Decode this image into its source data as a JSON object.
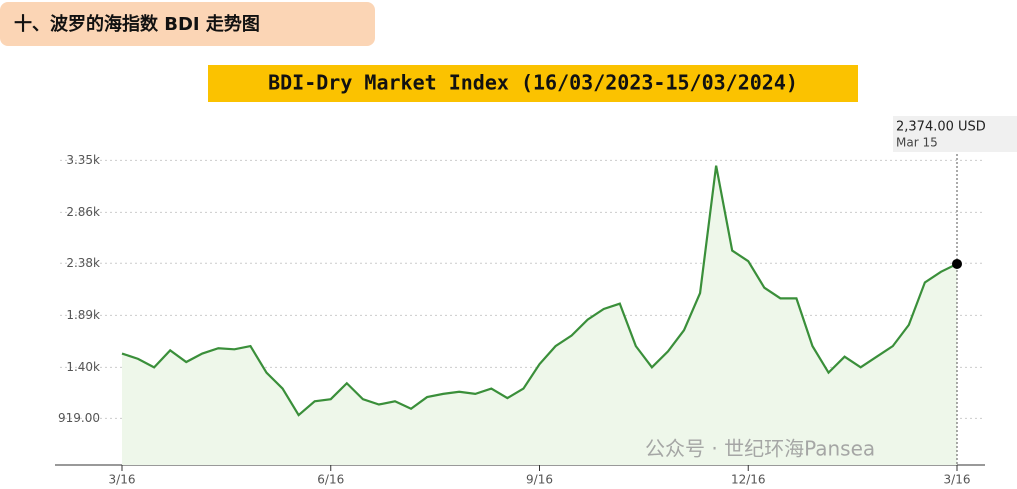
{
  "header": {
    "title": "十、波罗的海指数 BDI 走势图"
  },
  "chart_data": {
    "type": "line",
    "title": "BDI-Dry Market Index (16/03/2023-15/03/2024)",
    "categories": [
      "3/16",
      null,
      null,
      null,
      null,
      null,
      null,
      null,
      null,
      null,
      null,
      null,
      null,
      "6/16",
      null,
      null,
      null,
      null,
      null,
      null,
      null,
      null,
      null,
      null,
      null,
      null,
      "9/16",
      null,
      null,
      null,
      null,
      null,
      null,
      null,
      null,
      null,
      null,
      null,
      null,
      "12/16",
      null,
      null,
      null,
      null,
      null,
      null,
      null,
      null,
      null,
      null,
      null,
      null,
      "3/16"
    ],
    "series": [
      {
        "name": "BDI",
        "color": "#3a8f3a",
        "values": [
          1530,
          1480,
          1400,
          1560,
          1450,
          1530,
          1580,
          1570,
          1600,
          1350,
          1200,
          950,
          1080,
          1100,
          1250,
          1100,
          1050,
          1080,
          1010,
          1120,
          1150,
          1170,
          1150,
          1200,
          1110,
          1200,
          1430,
          1600,
          1700,
          1850,
          1950,
          2000,
          1600,
          1400,
          1550,
          1750,
          2100,
          3300,
          2500,
          2400,
          2150,
          2050,
          2050,
          1600,
          1350,
          1500,
          1400,
          1500,
          1600,
          1800,
          2200,
          2300,
          2374
        ]
      }
    ],
    "ylim": [
      480,
      3730
    ],
    "yticks": [
      {
        "value": 919,
        "label": "919.00"
      },
      {
        "value": 1400,
        "label": "1.40k"
      },
      {
        "value": 1890,
        "label": "1.89k"
      },
      {
        "value": 2380,
        "label": "2.38k"
      },
      {
        "value": 2860,
        "label": "2.86k"
      },
      {
        "value": 3350,
        "label": "3.35k"
      }
    ],
    "grid": true,
    "annotations": [
      "2,374.00 USD",
      "Mar 15",
      "公众号 · 世纪环海Pansea"
    ]
  }
}
